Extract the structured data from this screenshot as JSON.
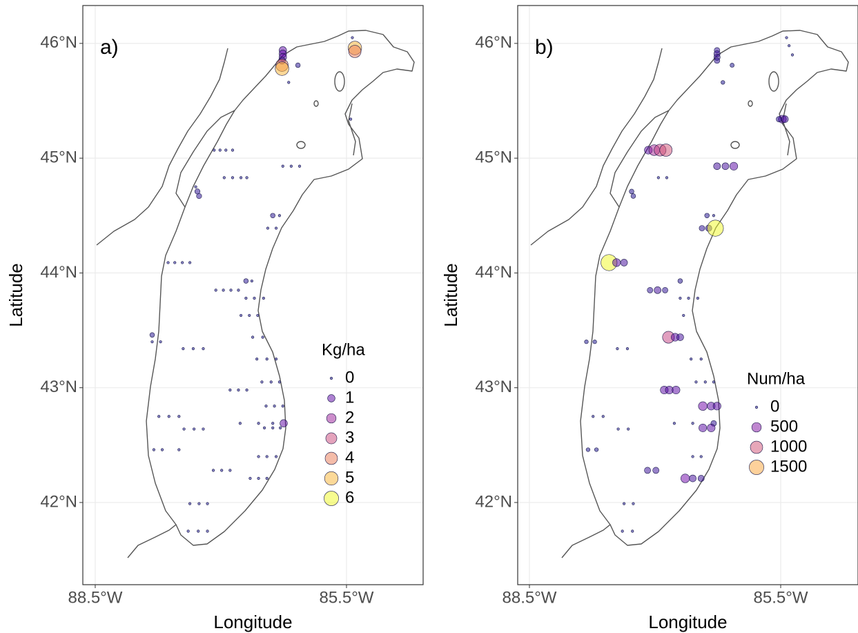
{
  "chart_data": [
    {
      "type": "scatter",
      "title": "a)",
      "x_label": "Longitude",
      "y_label": "Latitude",
      "xlim": [
        -88.648,
        -84.585
      ],
      "ylim": [
        41.284,
        46.33
      ],
      "xticks": [
        {
          "value": -88.5,
          "label": "88.5°W"
        },
        {
          "value": -85.5,
          "label": "85.5°W"
        }
      ],
      "yticks": [
        {
          "value": 42,
          "label": "42°N"
        },
        {
          "value": 43,
          "label": "43°N"
        },
        {
          "value": 44,
          "label": "44°N"
        },
        {
          "value": 45,
          "label": "45°N"
        },
        {
          "value": 46,
          "label": "46°N"
        }
      ],
      "grid": true,
      "colorscale": [
        "#0d0887",
        "#6a00a8",
        "#b12a90",
        "#e16462",
        "#fca636",
        "#f0f921"
      ],
      "x": [
        -86.26,
        -86.26,
        -86.26,
        -86.27,
        -86.27,
        -86.27,
        -85.4,
        -85.4,
        -85.43,
        -86.08,
        -86.19,
        -85.45,
        -87.08,
        -87.01,
        -86.94,
        -86.86,
        -86.96,
        -86.86,
        -86.76,
        -86.69,
        -86.26,
        -86.16,
        -86.06,
        -87.28,
        -87.26,
        -87.3,
        -86.38,
        -86.3,
        -86.44,
        -86.34,
        -87.63,
        -87.55,
        -87.46,
        -87.37,
        -86.7,
        -86.63,
        -87.06,
        -86.97,
        -86.88,
        -86.79,
        -86.7,
        -86.6,
        -86.49,
        -86.76,
        -86.66,
        -86.56,
        -86.62,
        -86.5,
        -87.82,
        -87.72,
        -87.82,
        -87.45,
        -87.33,
        -87.21,
        -86.57,
        -86.45,
        -86.34,
        -86.51,
        -86.4,
        -86.3,
        -86.89,
        -86.79,
        -86.69,
        -86.46,
        -86.36,
        -86.26,
        -87.74,
        -87.62,
        -87.5,
        -86.77,
        -86.55,
        -86.38,
        -86.25,
        -87.44,
        -87.32,
        -87.21,
        -86.48,
        -86.38,
        -86.29,
        -87.8,
        -87.7,
        -87.5,
        -86.55,
        -86.45,
        -86.34,
        -87.09,
        -86.99,
        -86.89,
        -86.65,
        -86.55,
        -86.45,
        -87.37,
        -87.26,
        -87.16,
        -87.39,
        -87.27,
        -87.16
      ],
      "y": [
        45.94,
        45.91,
        45.88,
        45.85,
        45.81,
        45.78,
        45.96,
        45.93,
        46.05,
        45.81,
        45.66,
        45.34,
        45.07,
        45.07,
        45.07,
        45.07,
        44.83,
        44.83,
        44.83,
        44.83,
        44.93,
        44.93,
        44.93,
        44.71,
        44.67,
        44.75,
        44.5,
        44.5,
        44.39,
        44.39,
        44.09,
        44.09,
        44.09,
        44.09,
        43.93,
        43.93,
        43.85,
        43.85,
        43.85,
        43.85,
        43.78,
        43.78,
        43.78,
        43.63,
        43.63,
        43.63,
        43.44,
        43.44,
        43.4,
        43.4,
        43.46,
        43.34,
        43.34,
        43.34,
        43.25,
        43.25,
        43.25,
        43.05,
        43.05,
        43.05,
        42.98,
        42.98,
        42.98,
        42.84,
        42.84,
        42.84,
        42.75,
        42.75,
        42.75,
        42.69,
        42.69,
        42.69,
        42.69,
        42.64,
        42.64,
        42.64,
        42.65,
        42.65,
        42.65,
        42.46,
        42.46,
        42.46,
        42.4,
        42.4,
        42.4,
        42.28,
        42.28,
        42.28,
        42.21,
        42.21,
        42.21,
        41.99,
        41.99,
        41.99,
        41.75,
        41.75,
        41.75
      ],
      "sizes": [
        1,
        1,
        1,
        0.8,
        4,
        5,
        5,
        4,
        0,
        0.2,
        0,
        0,
        0,
        0,
        0,
        0,
        0,
        0,
        0,
        0,
        0,
        0,
        0,
        0.3,
        0.3,
        0,
        0.2,
        0,
        0,
        0,
        0,
        0,
        0,
        0,
        0.2,
        0,
        0,
        0,
        0,
        0,
        0,
        0,
        0,
        0,
        0,
        0,
        0,
        0,
        0,
        0,
        0.2,
        0,
        0,
        0,
        0,
        0,
        0,
        0,
        0,
        0,
        0,
        0,
        0,
        0,
        0,
        0,
        0,
        0,
        0,
        0,
        0,
        0,
        1,
        0,
        0,
        0,
        0,
        0,
        0,
        0,
        0,
        0,
        0,
        0,
        0,
        0,
        0,
        0,
        0,
        0,
        0,
        0,
        0,
        0,
        0,
        0,
        0
      ],
      "legend": {
        "title": "Kg/ha",
        "values": [
          0,
          1,
          2,
          3,
          4,
          5,
          6
        ]
      }
    },
    {
      "type": "scatter",
      "title": "b)",
      "x_label": "Longitude",
      "y_label": "Latitude",
      "xlim": [
        -88.64,
        -84.577
      ],
      "ylim": [
        41.284,
        46.33
      ],
      "xticks": [
        {
          "value": -88.5,
          "label": "88.5°W"
        },
        {
          "value": -85.5,
          "label": "85.5°W"
        }
      ],
      "yticks": [
        {
          "value": 42,
          "label": "42°N"
        },
        {
          "value": 43,
          "label": "43°N"
        },
        {
          "value": 44,
          "label": "44°N"
        },
        {
          "value": 45,
          "label": "45°N"
        },
        {
          "value": 46,
          "label": "46°N"
        }
      ],
      "grid": true,
      "colorscale": [
        "#0d0887",
        "#6a00a8",
        "#b12a90",
        "#e16462",
        "#fca636",
        "#f0f921"
      ],
      "x": [
        -86.26,
        -86.26,
        -86.26,
        -86.26,
        -86.08,
        -86.19,
        -85.43,
        -85.4,
        -85.36,
        -85.48,
        -85.45,
        -85.52,
        -87.08,
        -87.01,
        -86.94,
        -86.87,
        -86.96,
        -86.86,
        -86.26,
        -86.16,
        -86.06,
        -87.28,
        -87.26,
        -86.38,
        -86.3,
        -86.44,
        -86.36,
        -86.28,
        -87.55,
        -87.46,
        -87.37,
        -86.7,
        -87.06,
        -86.97,
        -86.88,
        -86.7,
        -86.6,
        -86.49,
        -86.66,
        -86.84,
        -86.76,
        -86.7,
        -87.82,
        -87.72,
        -87.45,
        -87.33,
        -86.57,
        -86.45,
        -86.51,
        -86.4,
        -86.3,
        -86.89,
        -86.83,
        -86.75,
        -86.43,
        -86.33,
        -86.26,
        -87.74,
        -87.62,
        -86.77,
        -86.55,
        -86.3,
        -87.44,
        -87.32,
        -86.43,
        -86.33,
        -87.8,
        -87.7,
        -86.55,
        -86.45,
        -87.09,
        -86.99,
        -86.64,
        -86.55,
        -86.45,
        -87.37,
        -87.26,
        -87.39,
        -87.27
      ],
      "y": [
        45.94,
        45.91,
        45.88,
        45.85,
        45.81,
        45.66,
        46.05,
        45.98,
        45.9,
        45.34,
        45.34,
        45.34,
        45.07,
        45.07,
        45.07,
        45.07,
        44.83,
        44.83,
        44.93,
        44.93,
        44.93,
        44.71,
        44.67,
        44.5,
        44.5,
        44.39,
        44.39,
        44.39,
        44.09,
        44.09,
        44.09,
        43.93,
        43.85,
        43.85,
        43.85,
        43.78,
        43.78,
        43.78,
        43.63,
        43.44,
        43.44,
        43.44,
        43.4,
        43.4,
        43.34,
        43.34,
        43.25,
        43.25,
        43.05,
        43.05,
        43.05,
        42.98,
        42.98,
        42.98,
        42.84,
        42.84,
        42.84,
        42.75,
        42.75,
        42.69,
        42.69,
        42.69,
        42.64,
        42.64,
        42.65,
        42.65,
        42.46,
        42.46,
        42.4,
        42.4,
        42.28,
        42.28,
        42.21,
        42.21,
        42.21,
        41.99,
        41.99,
        41.75,
        41.75
      ],
      "sizes": [
        100,
        150,
        150,
        100,
        30,
        20,
        0,
        0,
        0,
        300,
        200,
        100,
        300,
        700,
        900,
        1000,
        0,
        0,
        200,
        200,
        300,
        50,
        50,
        50,
        0,
        100,
        150,
        1900,
        1900,
        300,
        200,
        50,
        100,
        200,
        100,
        0,
        0,
        0,
        0,
        900,
        300,
        200,
        20,
        20,
        0,
        0,
        0,
        0,
        0,
        0,
        0,
        300,
        300,
        300,
        400,
        300,
        300,
        0,
        0,
        0,
        0,
        100,
        0,
        0,
        300,
        300,
        20,
        20,
        0,
        0,
        150,
        150,
        400,
        200,
        150,
        0,
        0,
        0,
        0
      ],
      "legend": {
        "title": "Num/ha",
        "values": [
          0,
          500,
          1000,
          1500
        ]
      }
    }
  ]
}
